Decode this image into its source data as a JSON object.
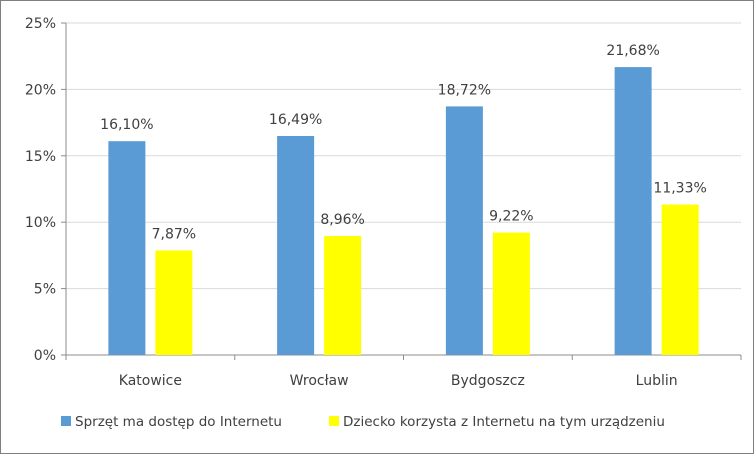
{
  "chart_data": {
    "type": "bar",
    "categories": [
      "Katowice",
      "Wrocław",
      "Bydgoszcz",
      "Lublin"
    ],
    "series": [
      {
        "name": "Sprzęt ma dostęp do Internetu",
        "values": [
          16.1,
          16.49,
          18.72,
          21.68
        ],
        "labels": [
          "16,10%",
          "16,49%",
          "18,72%",
          "21,68%"
        ],
        "color": "#5b9bd5"
      },
      {
        "name": "Dziecko korzysta z Internetu na tym urządzeniu",
        "values": [
          7.87,
          8.96,
          9.22,
          11.33
        ],
        "labels": [
          "7,87%",
          "8,96%",
          "9,22%",
          "11,33%"
        ],
        "color": "#ffff00"
      }
    ],
    "yticks": [
      0,
      5,
      10,
      15,
      20,
      25
    ],
    "ytick_labels": [
      "0%",
      "5%",
      "10%",
      "15%",
      "20%",
      "25%"
    ],
    "ylim": [
      0,
      25
    ],
    "grid": true,
    "gridline_color": "#d9d9d9",
    "legend_position": "bottom"
  }
}
